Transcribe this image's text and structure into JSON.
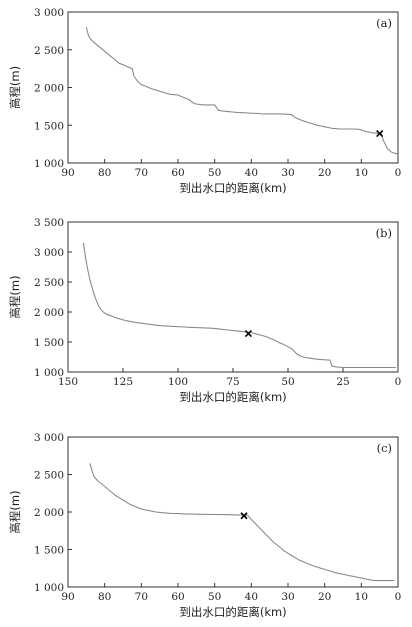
{
  "chart_data": [
    {
      "type": "line",
      "panel_label": "(a)",
      "xlabel": "到出水口的距离(km)",
      "ylabel": "高程(m)",
      "xlim": [
        90,
        0
      ],
      "ylim": [
        1000,
        3000
      ],
      "xticks": [
        90,
        80,
        70,
        60,
        50,
        40,
        30,
        20,
        10,
        0
      ],
      "yticks": [
        1000,
        1500,
        2000,
        2500,
        3000
      ],
      "xtick_labels": [
        "90",
        "80",
        "70",
        "60",
        "50",
        "40",
        "30",
        "20",
        "10",
        "0"
      ],
      "ytick_labels": [
        "1 000",
        "1 500",
        "2 000",
        "2 500",
        "3 000"
      ],
      "series": [
        {
          "x": [
            85,
            84.5,
            84,
            83,
            82,
            81,
            80,
            79,
            78,
            77,
            76,
            75,
            74,
            73,
            72.5,
            72,
            71,
            70,
            69,
            68,
            67,
            66,
            65,
            64,
            63,
            62,
            61,
            60,
            59,
            58,
            57,
            56,
            55,
            54,
            53,
            52,
            51,
            50,
            49,
            48,
            47,
            46,
            45,
            44,
            43,
            42,
            41,
            40,
            39,
            38,
            37,
            36,
            35,
            34,
            33,
            32,
            31,
            30,
            29,
            28,
            27,
            26,
            25,
            24,
            23,
            22,
            21,
            20,
            19,
            18,
            17,
            16,
            15,
            14,
            13,
            12,
            11,
            10,
            9,
            8,
            7,
            6,
            5.5,
            5,
            4.5,
            4,
            3.5,
            3,
            2,
            1,
            0
          ],
          "y": [
            2800,
            2700,
            2650,
            2600,
            2560,
            2520,
            2480,
            2440,
            2400,
            2360,
            2320,
            2300,
            2280,
            2260,
            2250,
            2150,
            2080,
            2040,
            2020,
            2000,
            1980,
            1965,
            1950,
            1935,
            1920,
            1910,
            1905,
            1900,
            1880,
            1860,
            1840,
            1800,
            1780,
            1775,
            1770,
            1770,
            1770,
            1770,
            1700,
            1690,
            1685,
            1680,
            1675,
            1670,
            1668,
            1665,
            1662,
            1660,
            1658,
            1655,
            1652,
            1650,
            1650,
            1650,
            1650,
            1650,
            1648,
            1645,
            1640,
            1600,
            1580,
            1560,
            1545,
            1530,
            1515,
            1500,
            1490,
            1480,
            1470,
            1460,
            1455,
            1450,
            1450,
            1450,
            1450,
            1450,
            1448,
            1440,
            1420,
            1410,
            1400,
            1395,
            1390,
            1390,
            1385,
            1300,
            1250,
            1200,
            1150,
            1130,
            1120
          ]
        }
      ],
      "marker": {
        "x": 5,
        "y": 1390,
        "symbol": "×"
      }
    },
    {
      "type": "line",
      "panel_label": "(b)",
      "xlabel": "到出水口的距离(km)",
      "ylabel": "高程(m)",
      "xlim": [
        150,
        0
      ],
      "ylim": [
        1000,
        3500
      ],
      "xticks": [
        150,
        125,
        100,
        75,
        50,
        25,
        0
      ],
      "yticks": [
        1000,
        1500,
        2000,
        2500,
        3000,
        3500
      ],
      "xtick_labels": [
        "150",
        "125",
        "100",
        "75",
        "50",
        "25",
        "0"
      ],
      "ytick_labels": [
        "1 000",
        "1 500",
        "2 000",
        "2 500",
        "3 000",
        "3 500"
      ],
      "series": [
        {
          "x": [
            143,
            142,
            141,
            140,
            139,
            138,
            137,
            136,
            135,
            134,
            133,
            132,
            130,
            128,
            126,
            124,
            122,
            120,
            118,
            115,
            112,
            110,
            108,
            105,
            102,
            100,
            97,
            95,
            92,
            90,
            88,
            85,
            82,
            80,
            77,
            75,
            72,
            70,
            68,
            66,
            64,
            62,
            60,
            58,
            56,
            54,
            52,
            50,
            48,
            47,
            46,
            44,
            42,
            40,
            38,
            36,
            34,
            32,
            31,
            30,
            28,
            25,
            22,
            20,
            15,
            10,
            5,
            1
          ],
          "y": [
            3150,
            2900,
            2700,
            2530,
            2400,
            2280,
            2180,
            2100,
            2040,
            2000,
            1975,
            1955,
            1930,
            1900,
            1880,
            1860,
            1845,
            1830,
            1820,
            1805,
            1790,
            1780,
            1772,
            1765,
            1760,
            1755,
            1750,
            1745,
            1740,
            1738,
            1735,
            1730,
            1720,
            1712,
            1700,
            1690,
            1680,
            1672,
            1663,
            1650,
            1630,
            1610,
            1590,
            1560,
            1530,
            1490,
            1460,
            1420,
            1380,
            1340,
            1300,
            1260,
            1240,
            1230,
            1220,
            1210,
            1205,
            1200,
            1200,
            1100,
            1085,
            1075,
            1075,
            1075,
            1075,
            1075,
            1075,
            1075
          ]
        }
      ],
      "marker": {
        "x": 68,
        "y": 1640,
        "symbol": "×"
      }
    },
    {
      "type": "line",
      "panel_label": "(c)",
      "xlabel": "到出水口的距离(km)",
      "ylabel": "高程(m)",
      "xlim": [
        90,
        0
      ],
      "ylim": [
        1000,
        3000
      ],
      "xticks": [
        90,
        80,
        70,
        60,
        50,
        40,
        30,
        20,
        10,
        0
      ],
      "yticks": [
        1000,
        1500,
        2000,
        2500,
        3000
      ],
      "xtick_labels": [
        "90",
        "80",
        "70",
        "60",
        "50",
        "40",
        "30",
        "20",
        "10",
        "0"
      ],
      "ytick_labels": [
        "1 000",
        "1 500",
        "2 000",
        "2 500",
        "3 000"
      ],
      "series": [
        {
          "x": [
            84,
            83.5,
            83,
            82,
            81,
            80,
            79,
            78,
            77,
            76,
            75,
            74,
            73,
            72,
            71,
            70,
            69,
            68,
            67,
            66,
            65,
            64,
            63,
            62,
            61,
            60,
            58,
            56,
            54,
            52,
            50,
            48,
            46,
            44,
            42,
            41,
            40,
            39,
            38,
            37,
            36,
            35,
            34,
            33,
            32,
            31,
            30,
            29,
            28,
            27,
            26,
            25,
            24,
            23,
            22,
            21,
            20,
            19,
            18,
            17,
            16,
            15,
            14,
            13,
            12,
            11,
            10,
            9,
            8,
            7,
            6,
            5,
            4,
            3,
            2,
            1
          ],
          "y": [
            2650,
            2560,
            2480,
            2420,
            2380,
            2340,
            2300,
            2260,
            2220,
            2190,
            2160,
            2130,
            2100,
            2080,
            2060,
            2040,
            2030,
            2020,
            2010,
            2000,
            1995,
            1990,
            1985,
            1982,
            1980,
            1978,
            1975,
            1972,
            1970,
            1968,
            1966,
            1965,
            1964,
            1962,
            1960,
            1955,
            1900,
            1850,
            1800,
            1750,
            1700,
            1650,
            1600,
            1560,
            1520,
            1480,
            1450,
            1420,
            1390,
            1360,
            1340,
            1320,
            1300,
            1280,
            1265,
            1250,
            1235,
            1220,
            1205,
            1190,
            1180,
            1170,
            1160,
            1150,
            1140,
            1130,
            1120,
            1110,
            1100,
            1090,
            1085,
            1085,
            1085,
            1085,
            1085,
            1085
          ]
        }
      ],
      "marker": {
        "x": 42,
        "y": 1950,
        "symbol": "×"
      }
    }
  ]
}
